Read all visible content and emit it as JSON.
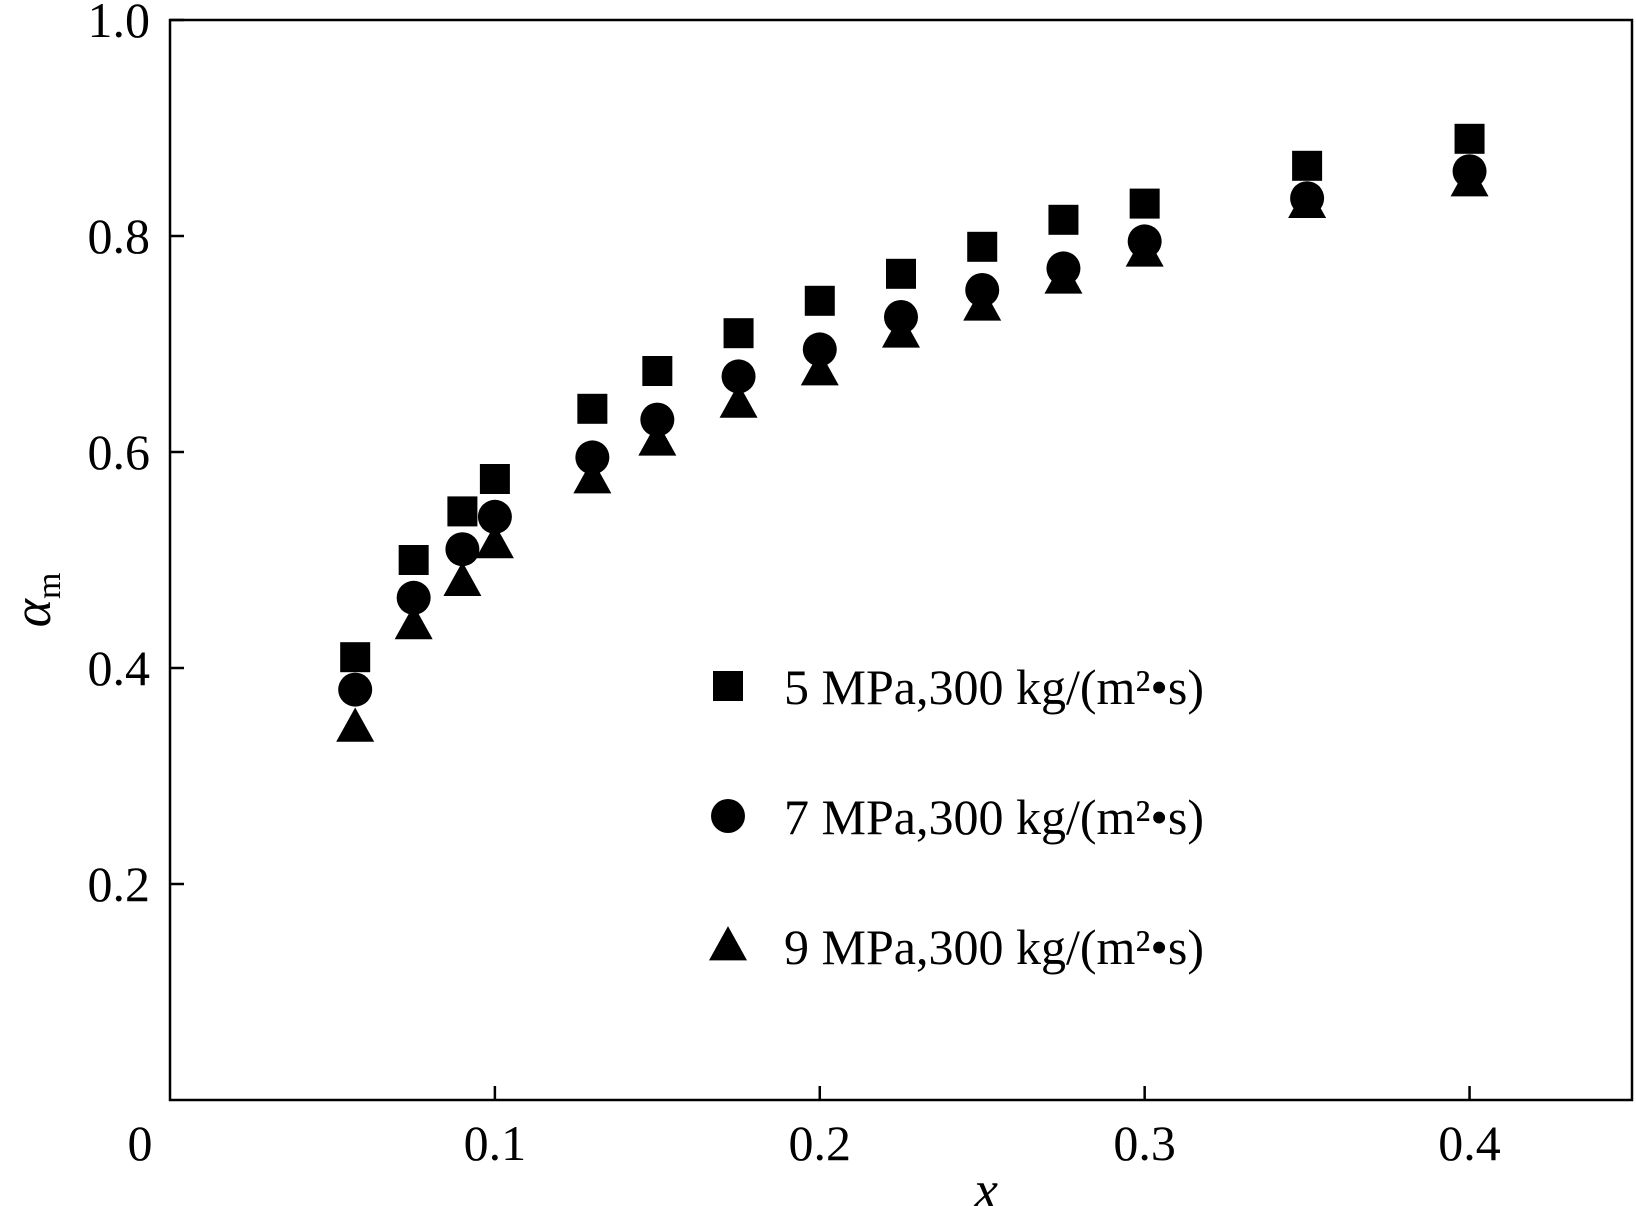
{
  "chart_data": {
    "type": "scatter",
    "title": "",
    "xlabel": "x",
    "ylabel": "α",
    "ylabel_subscript": "m",
    "xlim": [
      0,
      0.45
    ],
    "ylim": [
      0,
      1.0
    ],
    "x_ticks": [
      {
        "value": 0,
        "label": "0"
      },
      {
        "value": 0.1,
        "label": "0.1"
      },
      {
        "value": 0.2,
        "label": "0.2"
      },
      {
        "value": 0.3,
        "label": "0.3"
      },
      {
        "value": 0.4,
        "label": "0.4"
      }
    ],
    "y_ticks": [
      {
        "value": 0.2,
        "label": "0.2"
      },
      {
        "value": 0.4,
        "label": "0.4"
      },
      {
        "value": 0.6,
        "label": "0.6"
      },
      {
        "value": 0.8,
        "label": "0.8"
      },
      {
        "value": 1.0,
        "label": "1.0"
      }
    ],
    "grid": false,
    "legend_position": "lower-right",
    "x": [
      0.057,
      0.075,
      0.09,
      0.1,
      0.13,
      0.15,
      0.175,
      0.2,
      0.225,
      0.25,
      0.275,
      0.3,
      0.35,
      0.4
    ],
    "series": [
      {
        "name": "5 MPa,300 kg/(m²•s)",
        "marker": "square",
        "color": "#000000",
        "values": [
          0.41,
          0.5,
          0.545,
          0.575,
          0.64,
          0.675,
          0.71,
          0.74,
          0.765,
          0.79,
          0.815,
          0.83,
          0.865,
          0.89
        ]
      },
      {
        "name": "7 MPa,300 kg/(m²•s)",
        "marker": "circle",
        "color": "#000000",
        "values": [
          0.38,
          0.465,
          0.51,
          0.54,
          0.595,
          0.63,
          0.67,
          0.695,
          0.725,
          0.75,
          0.77,
          0.795,
          0.835,
          0.86
        ]
      },
      {
        "name": "9 MPa,300 kg/(m²•s)",
        "marker": "triangle",
        "color": "#000000",
        "values": [
          0.345,
          0.44,
          0.48,
          0.515,
          0.575,
          0.61,
          0.645,
          0.675,
          0.71,
          0.735,
          0.76,
          0.785,
          0.83,
          0.85
        ]
      }
    ]
  }
}
